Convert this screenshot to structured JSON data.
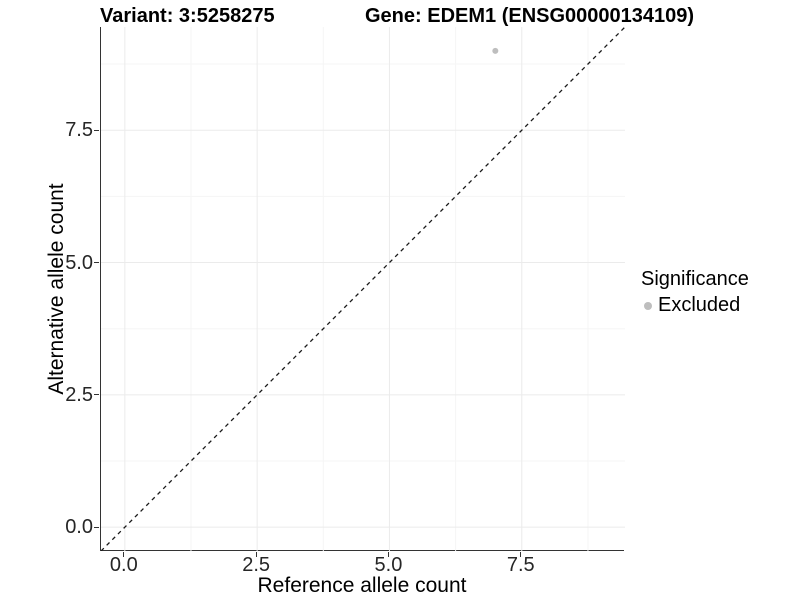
{
  "header": {
    "variant_title": "Variant: 3:5258275",
    "gene_title": "Gene: EDEM1 (ENSG00000134109)"
  },
  "legend": {
    "title": "Significance",
    "items": [
      {
        "label": "Excluded",
        "color": "#bebebe",
        "marker": "circle"
      }
    ]
  },
  "chart_data": {
    "type": "scatter",
    "titles": [
      "Variant: 3:5258275",
      "Gene: EDEM1 (ENSG00000134109)"
    ],
    "xlabel": "Reference allele count",
    "ylabel": "Alternative allele count",
    "xlim": [
      -0.45,
      9.45
    ],
    "ylim": [
      -0.45,
      9.45
    ],
    "x_tick_values": [
      0,
      2.5,
      5,
      7.5
    ],
    "x_tick_labels": [
      "0.0",
      "2.5",
      "5.0",
      "7.5"
    ],
    "y_tick_values": [
      0,
      2.5,
      5,
      7.5
    ],
    "y_tick_labels": [
      "0.0",
      "2.5",
      "5.0",
      "7.5"
    ],
    "x_minor_ticks": [
      1.25,
      3.75,
      6.25,
      8.75
    ],
    "y_minor_ticks": [
      1.25,
      3.75,
      6.25,
      8.75
    ],
    "grid": "major+minor",
    "legend_position": "right",
    "reference_line": {
      "type": "identity",
      "from": [
        -0.45,
        -0.45
      ],
      "to": [
        9.45,
        9.45
      ],
      "style": "dashed"
    },
    "series": [
      {
        "name": "Excluded",
        "color": "#bebebe",
        "point_radius": 3,
        "points": [
          {
            "x": 7,
            "y": 9
          }
        ]
      }
    ]
  },
  "colors": {
    "background": "#ffffff",
    "axis_line": "#333333",
    "tick_text": "#262626",
    "title_text": "#000000",
    "grid_major": "#ebebeb",
    "grid_minor": "#f5f5f5",
    "reference_line": "#1a1a1a",
    "point": "#bebebe"
  }
}
